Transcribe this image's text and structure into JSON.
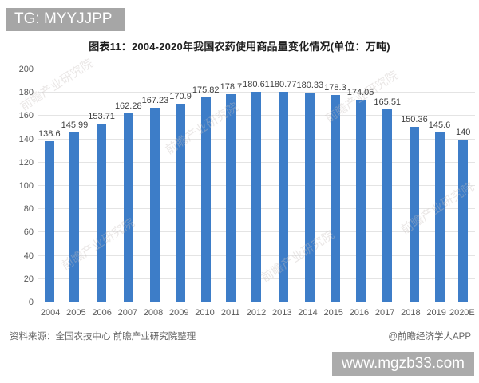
{
  "header": {
    "badge": "TG: MYYJJPP"
  },
  "chart_data": {
    "type": "bar",
    "title": "图表11：2004-2020年我国农药使用商品量变化情况(单位：万吨)",
    "categories": [
      "2004",
      "2005",
      "2006",
      "2007",
      "2008",
      "2009",
      "2010",
      "2011",
      "2012",
      "2013",
      "2014",
      "2015",
      "2016",
      "2017",
      "2018",
      "2019",
      "2020E"
    ],
    "values": [
      138.6,
      145.99,
      153.71,
      162.28,
      167.23,
      170.9,
      175.82,
      178.7,
      180.61,
      180.77,
      180.33,
      178.3,
      174.05,
      165.51,
      150.36,
      145.6,
      140
    ],
    "xlabel": "",
    "ylabel": "",
    "unit": "万吨",
    "ylim": [
      0,
      200
    ],
    "ytick_step": 20,
    "grid": true,
    "legend": false,
    "bar_color": "#3d7dc8"
  },
  "colors": {
    "bar": "#3d7dc8",
    "badge_background": "#a6a6a6",
    "gridline": "#e4e4e4"
  },
  "footer": {
    "source": "资料来源：全国农技中心 前瞻产业研究院整理",
    "credit": "@前瞻经济学人APP"
  },
  "watermarks": {
    "site_badge": "www.mgzb33.com",
    "diagonal_text": "前瞻产业研究院"
  }
}
